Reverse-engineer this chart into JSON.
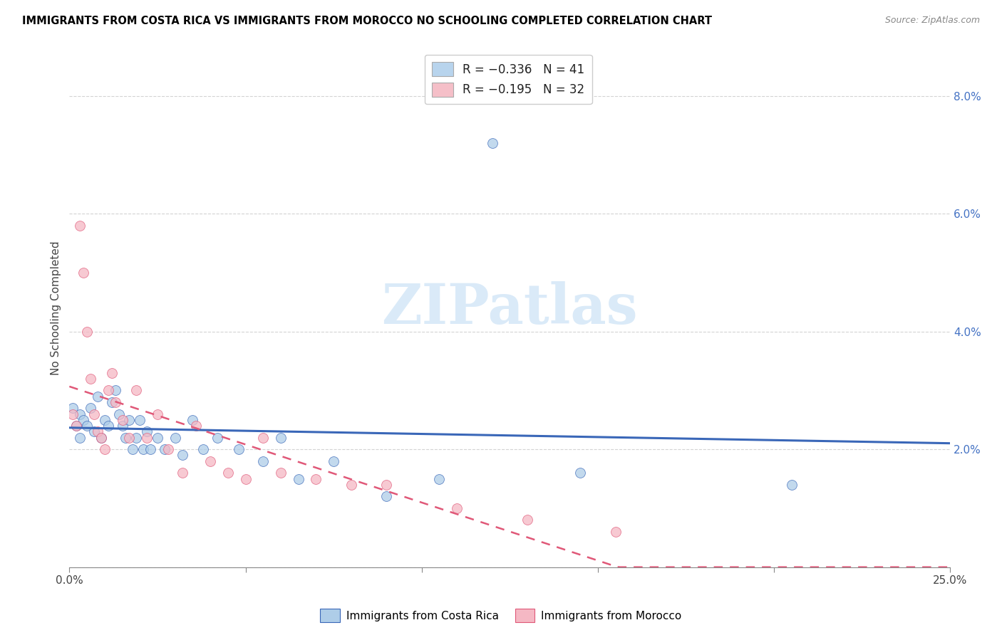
{
  "title": "IMMIGRANTS FROM COSTA RICA VS IMMIGRANTS FROM MOROCCO NO SCHOOLING COMPLETED CORRELATION CHART",
  "source": "Source: ZipAtlas.com",
  "ylabel": "No Schooling Completed",
  "ytick_vals": [
    0.0,
    0.02,
    0.04,
    0.06,
    0.08
  ],
  "ytick_labels": [
    "",
    "2.0%",
    "4.0%",
    "6.0%",
    "8.0%"
  ],
  "xlim": [
    0.0,
    0.25
  ],
  "ylim": [
    0.0,
    0.088
  ],
  "legend_blue_label": "R = −0.336   N = 41",
  "legend_pink_label": "R = −0.195   N = 32",
  "legend_blue_color": "#b8d4ed",
  "legend_pink_color": "#f5bfc8",
  "scatter_blue_color": "#aecde8",
  "scatter_pink_color": "#f5b8c4",
  "line_blue_color": "#3a67b8",
  "line_pink_color": "#e05878",
  "watermark": "ZIPatlas",
  "watermark_color": "#daeaf8",
  "footer_blue": "Immigrants from Costa Rica",
  "footer_pink": "Immigrants from Morocco",
  "costa_rica_x": [
    0.001,
    0.002,
    0.003,
    0.003,
    0.004,
    0.005,
    0.006,
    0.007,
    0.008,
    0.009,
    0.01,
    0.011,
    0.012,
    0.013,
    0.014,
    0.015,
    0.016,
    0.017,
    0.018,
    0.019,
    0.02,
    0.021,
    0.022,
    0.023,
    0.025,
    0.027,
    0.03,
    0.032,
    0.035,
    0.038,
    0.042,
    0.048,
    0.055,
    0.06,
    0.065,
    0.075,
    0.09,
    0.105,
    0.12,
    0.145,
    0.205
  ],
  "costa_rica_y": [
    0.027,
    0.024,
    0.026,
    0.022,
    0.025,
    0.024,
    0.027,
    0.023,
    0.029,
    0.022,
    0.025,
    0.024,
    0.028,
    0.03,
    0.026,
    0.024,
    0.022,
    0.025,
    0.02,
    0.022,
    0.025,
    0.02,
    0.023,
    0.02,
    0.022,
    0.02,
    0.022,
    0.019,
    0.025,
    0.02,
    0.022,
    0.02,
    0.018,
    0.022,
    0.015,
    0.018,
    0.012,
    0.015,
    0.072,
    0.016,
    0.014
  ],
  "morocco_x": [
    0.001,
    0.002,
    0.003,
    0.004,
    0.005,
    0.006,
    0.007,
    0.008,
    0.009,
    0.01,
    0.011,
    0.012,
    0.013,
    0.015,
    0.017,
    0.019,
    0.022,
    0.025,
    0.028,
    0.032,
    0.036,
    0.04,
    0.045,
    0.05,
    0.055,
    0.06,
    0.07,
    0.08,
    0.09,
    0.11,
    0.13,
    0.155
  ],
  "morocco_y": [
    0.026,
    0.024,
    0.058,
    0.05,
    0.04,
    0.032,
    0.026,
    0.023,
    0.022,
    0.02,
    0.03,
    0.033,
    0.028,
    0.025,
    0.022,
    0.03,
    0.022,
    0.026,
    0.02,
    0.016,
    0.024,
    0.018,
    0.016,
    0.015,
    0.022,
    0.016,
    0.015,
    0.014,
    0.014,
    0.01,
    0.008,
    0.006
  ],
  "xtick_positions": [
    0.0,
    0.05,
    0.1,
    0.15,
    0.2,
    0.25
  ],
  "grid_color": "#c8c8c8",
  "tick_color": "#888888"
}
